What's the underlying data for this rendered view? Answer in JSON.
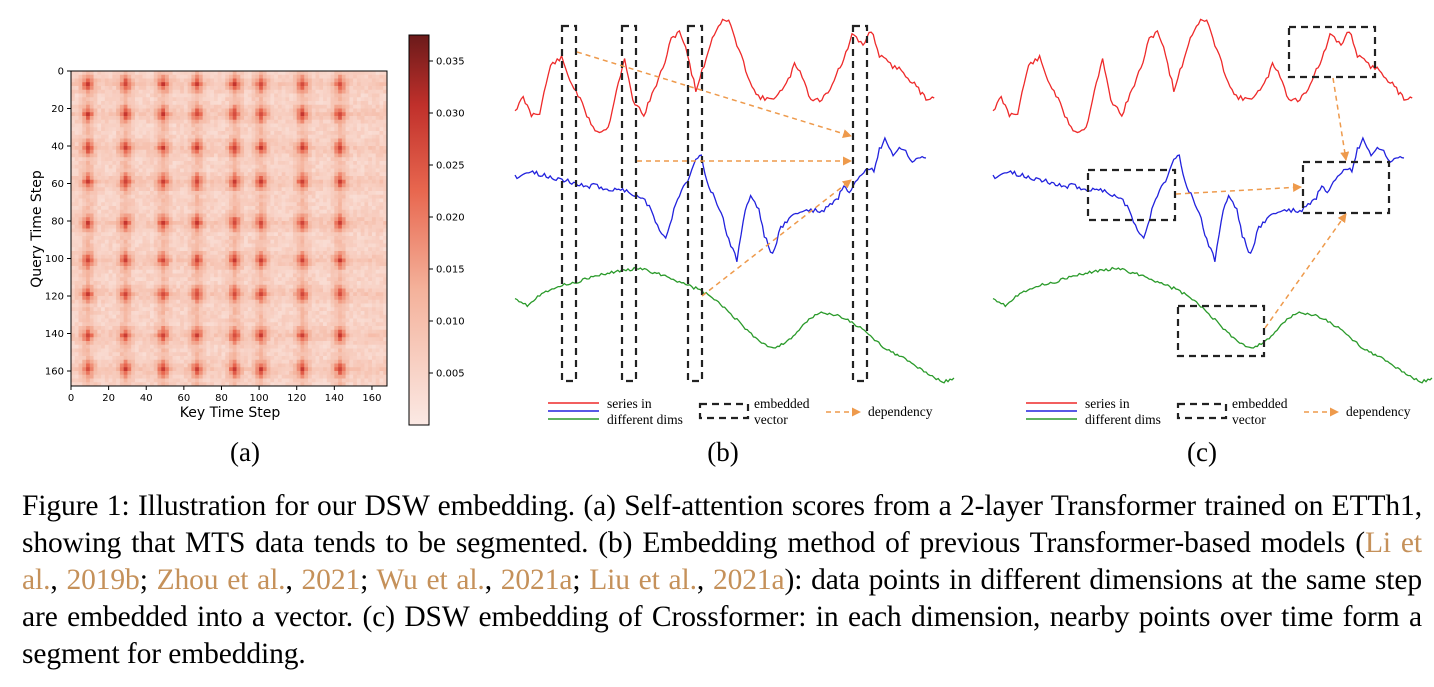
{
  "panel_a": {
    "label": "(a)",
    "xlabel": "Key Time Step",
    "ylabel": "Query Time Step",
    "xticks": [
      "0",
      "20",
      "40",
      "60",
      "80",
      "100",
      "120",
      "140",
      "160"
    ],
    "yticks": [
      "0",
      "20",
      "40",
      "60",
      "80",
      "100",
      "120",
      "140",
      "160"
    ],
    "colorbar_ticks": [
      "0.035",
      "0.030",
      "0.025",
      "0.020",
      "0.015",
      "0.010",
      "0.005"
    ],
    "colors": {
      "low": "#fbe9e4",
      "high": "#6b1a1a"
    }
  },
  "panel_b": {
    "label": "(b)",
    "legend": {
      "series_line1": "series in",
      "series_line2": "different dims",
      "embed_line1": "embedded",
      "embed_line2": "vector",
      "dependency": "dependency"
    }
  },
  "panel_c": {
    "label": "(c)",
    "legend": {
      "series_line1": "series in",
      "series_line2": "different dims",
      "embed_line1": "embedded",
      "embed_line2": "vector",
      "dependency": "dependency"
    }
  },
  "colors": {
    "red": "#ee2a2a",
    "blue": "#2222dd",
    "green": "#2a9a2a",
    "orange": "#ee9a4c",
    "cite": "#c5915a"
  },
  "caption": {
    "part1": "Figure 1: Illustration for our DSW embedding. (a) Self-attention scores from a 2-layer Transformer trained on ETTh1, showing that MTS data tends to be segmented. (b) Embedding method of previous Transformer-based models (",
    "cite1_author": "Li et al.",
    "cite1_year": "2019b",
    "cite2_author": "Zhou et al.",
    "cite2_year": "2021",
    "cite3_author": "Wu et al.",
    "cite3_year": "2021a",
    "cite4_author": "Liu et al.",
    "cite4_year": "2021a",
    "part2": "): data points in different dimensions at the same step are embedded into a vector. (c) DSW embedding of Crossformer: in each dimension, nearby points over time form a segment for embedding.",
    "sep_comma": ", ",
    "sep_semi": "; "
  }
}
